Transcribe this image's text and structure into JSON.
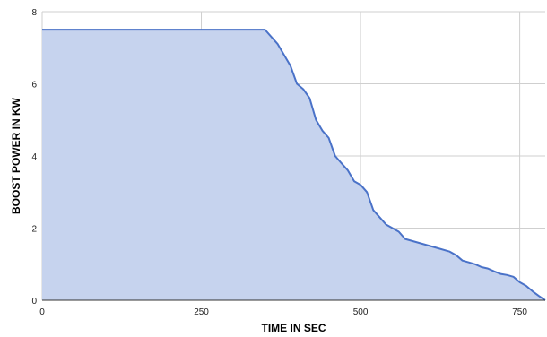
{
  "chart_data": {
    "type": "area",
    "title": "",
    "xlabel": "TIME IN SEC",
    "ylabel": "BOOST POWER IN KW",
    "xlim": [
      0,
      790
    ],
    "ylim": [
      0,
      8
    ],
    "x_ticks": [
      0,
      250,
      500,
      750
    ],
    "y_ticks": [
      0,
      2,
      4,
      6,
      8
    ],
    "grid": true,
    "legend": "none",
    "series": [
      {
        "x": [
          0,
          350,
          370,
          390,
          400,
          410,
          420,
          430,
          440,
          450,
          460,
          470,
          480,
          490,
          500,
          510,
          520,
          530,
          540,
          550,
          560,
          570,
          580,
          600,
          620,
          640,
          650,
          660,
          670,
          680,
          690,
          700,
          710,
          720,
          730,
          740,
          750,
          760,
          770,
          780,
          790
        ],
        "y": [
          7.5,
          7.5,
          7.1,
          6.5,
          6.0,
          5.85,
          5.6,
          5.0,
          4.7,
          4.5,
          4.0,
          3.8,
          3.6,
          3.3,
          3.2,
          3.0,
          2.5,
          2.3,
          2.1,
          2.0,
          1.9,
          1.7,
          1.65,
          1.55,
          1.45,
          1.35,
          1.25,
          1.1,
          1.05,
          1.0,
          0.92,
          0.88,
          0.8,
          0.73,
          0.7,
          0.65,
          0.5,
          0.4,
          0.25,
          0.12,
          0.0
        ]
      }
    ],
    "colors": {
      "line": "#4a72c8",
      "fill": "#c6d3ee",
      "grid": "#cfcfcf"
    }
  }
}
